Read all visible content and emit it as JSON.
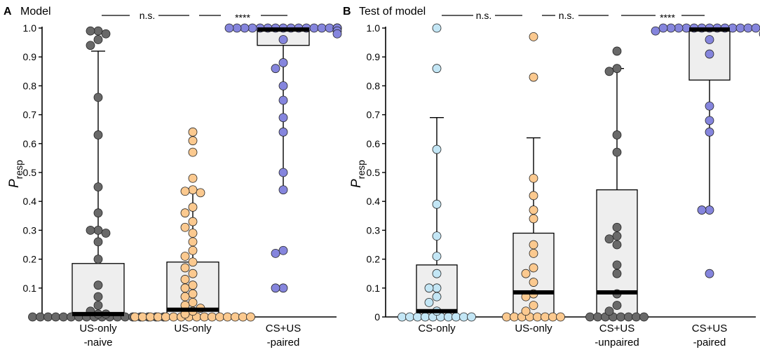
{
  "chart_data": [
    {
      "type": "box-dot",
      "panel_letter": "A",
      "title": "Model",
      "ylabel": "P",
      "ylabel_subscript": "resp",
      "ylim": [
        0,
        1.0
      ],
      "yticks": [
        "0",
        "0.1",
        "0.2",
        "0.3",
        "0.4",
        "0.5",
        "0.6",
        "0.7",
        "0.8",
        "0.9",
        "1.0"
      ],
      "categories": [
        "US-only\n-naive",
        "US-only",
        "CS+US\n-paired"
      ],
      "groups": [
        {
          "name": "US-only -naive",
          "color": "#696969",
          "median": 0.01,
          "q1": 0.0,
          "q3": 0.185,
          "whisker_low": 0.0,
          "whisker_high": 0.92,
          "points": [
            0.99,
            0.99,
            0.98,
            0.96,
            0.94,
            0.76,
            0.63,
            0.45,
            0.36,
            0.3,
            0.3,
            0.29,
            0.26,
            0.2,
            0.11,
            0.07,
            0.04,
            0.02,
            0.01,
            0.01,
            0,
            0,
            0,
            0,
            0,
            0,
            0,
            0,
            0,
            0,
            0,
            0,
            0,
            0,
            0,
            0,
            0,
            0
          ]
        },
        {
          "name": "US-only",
          "color": "#fbc98f",
          "median": 0.025,
          "q1": 0.0,
          "q3": 0.19,
          "whisker_low": 0.0,
          "whisker_high": 0.44,
          "points": [
            0.64,
            0.61,
            0.57,
            0.48,
            0.44,
            0.435,
            0.43,
            0.38,
            0.36,
            0.33,
            0.31,
            0.29,
            0.26,
            0.23,
            0.21,
            0.19,
            0.17,
            0.15,
            0.13,
            0.11,
            0.1,
            0.08,
            0.07,
            0.05,
            0.04,
            0.03,
            0.02,
            0.01,
            0,
            0,
            0,
            0,
            0,
            0,
            0,
            0,
            0,
            0,
            0,
            0,
            0,
            0,
            0,
            0
          ]
        },
        {
          "name": "CS+US -paired",
          "color": "#8585dd",
          "median": 0.995,
          "q1": 0.94,
          "q3": 1.0,
          "whisker_low": 0.44,
          "whisker_high": 1.0,
          "points": [
            1,
            1,
            1,
            1,
            1,
            1,
            1,
            1,
            1,
            1,
            1,
            1,
            1,
            1,
            1,
            1,
            1,
            1,
            1,
            1,
            1,
            0.99,
            0.98,
            0.96,
            0.88,
            0.86,
            0.8,
            0.75,
            0.69,
            0.64,
            0.5,
            0.44,
            0.23,
            0.22,
            0.1,
            0.1
          ]
        }
      ],
      "significance": [
        "n.s.",
        "****"
      ]
    },
    {
      "type": "box-dot",
      "panel_letter": "B",
      "title": "Test of model",
      "ylabel": "P",
      "ylabel_subscript": "resp",
      "ylim": [
        0,
        1.0
      ],
      "yticks": [
        "0",
        "0.1",
        "0.2",
        "0.3",
        "0.4",
        "0.5",
        "0.6",
        "0.7",
        "0.8",
        "0.9",
        "1.0"
      ],
      "categories": [
        "CS-only",
        "US-only",
        "CS+US\n-unpaired",
        "CS+US\n-paired"
      ],
      "groups": [
        {
          "name": "CS-only",
          "color": "#c3e6f5",
          "median": 0.02,
          "q1": 0.0,
          "q3": 0.18,
          "whisker_low": 0.0,
          "whisker_high": 0.69,
          "points": [
            1.0,
            0.86,
            0.58,
            0.39,
            0.28,
            0.21,
            0.15,
            0.1,
            0.1,
            0.07,
            0.05,
            0.02,
            0,
            0,
            0,
            0,
            0,
            0,
            0,
            0,
            0,
            0
          ]
        },
        {
          "name": "US-only",
          "color": "#fbc98f",
          "median": 0.085,
          "q1": 0.0,
          "q3": 0.29,
          "whisker_low": 0.0,
          "whisker_high": 0.62,
          "points": [
            0.97,
            0.83,
            0.48,
            0.42,
            0.37,
            0.34,
            0.25,
            0.22,
            0.17,
            0.15,
            0.12,
            0.08,
            0.07,
            0.04,
            0.02,
            0,
            0,
            0,
            0,
            0,
            0,
            0,
            0
          ]
        },
        {
          "name": "CS+US -unpaired",
          "color": "#696969",
          "median": 0.085,
          "q1": 0.0,
          "q3": 0.44,
          "whisker_low": 0.0,
          "whisker_high": 0.86,
          "points": [
            0.92,
            0.86,
            0.85,
            0.63,
            0.57,
            0.31,
            0.28,
            0.27,
            0.25,
            0.18,
            0.15,
            0.08,
            0.04,
            0.02,
            0,
            0,
            0,
            0,
            0,
            0,
            0,
            0
          ]
        },
        {
          "name": "CS+US -paired",
          "color": "#8585dd",
          "median": 0.995,
          "q1": 0.82,
          "q3": 1.0,
          "whisker_low": 0.37,
          "whisker_high": 1.0,
          "points": [
            1,
            1,
            1,
            1,
            1,
            1,
            1,
            1,
            1,
            1,
            1,
            1,
            1,
            0.99,
            0.98,
            0.96,
            0.91,
            0.73,
            0.68,
            0.64,
            0.37,
            0.37,
            0.15
          ]
        }
      ],
      "significance": [
        "n.s.",
        "n.s.",
        "****"
      ]
    }
  ]
}
